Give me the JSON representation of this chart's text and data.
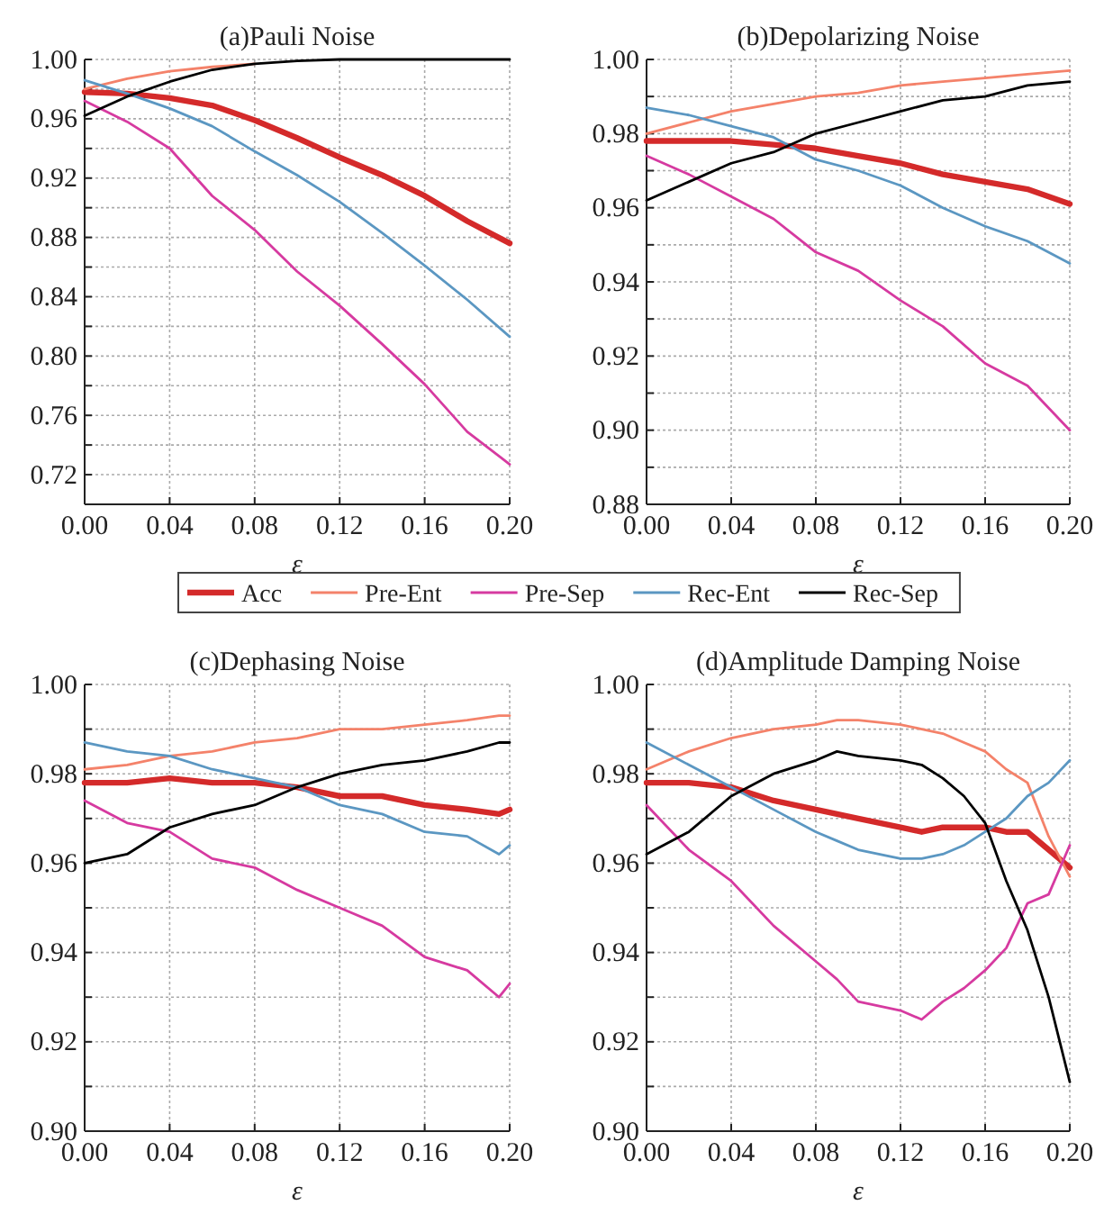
{
  "chart_data": [
    {
      "type": "line",
      "title": "(a)Pauli Noise",
      "xlabel": "ε",
      "xlim": [
        0,
        0.2
      ],
      "ylim": [
        0.7,
        1.0
      ],
      "grid": true,
      "legend": "bottom",
      "xticks": [
        {
          "value": 0,
          "label": "0.00"
        },
        {
          "value": 0.04,
          "label": "0.04"
        },
        {
          "value": 0.08,
          "label": "0.08"
        },
        {
          "value": 0.12,
          "label": "0.12"
        },
        {
          "value": 0.16,
          "label": "0.16"
        },
        {
          "value": 0.2,
          "label": "0.20"
        }
      ],
      "yticks": [
        {
          "value": 0.7,
          "label": null
        },
        {
          "value": 0.72,
          "label": "0.72"
        },
        {
          "value": 0.74,
          "label": null
        },
        {
          "value": 0.76,
          "label": "0.76"
        },
        {
          "value": 0.78,
          "label": null
        },
        {
          "value": 0.8,
          "label": "0.80"
        },
        {
          "value": 0.82,
          "label": null
        },
        {
          "value": 0.84,
          "label": "0.84"
        },
        {
          "value": 0.86,
          "label": null
        },
        {
          "value": 0.88,
          "label": "0.88"
        },
        {
          "value": 0.9,
          "label": null
        },
        {
          "value": 0.92,
          "label": "0.92"
        },
        {
          "value": 0.94,
          "label": null
        },
        {
          "value": 0.96,
          "label": "0.96"
        },
        {
          "value": 0.98,
          "label": null
        },
        {
          "value": 1.0,
          "label": "1.00"
        }
      ],
      "x": [
        0,
        0.02,
        0.04,
        0.06,
        0.08,
        0.1,
        0.12,
        0.14,
        0.16,
        0.18,
        0.2
      ],
      "series": [
        {
          "name": "Acc",
          "color": "#d42a2a",
          "values": [
            0.978,
            0.977,
            0.974,
            0.969,
            0.959,
            0.947,
            0.934,
            0.922,
            0.908,
            0.891,
            0.876
          ]
        },
        {
          "name": "Pre-Ent",
          "color": "#f4826a",
          "values": [
            0.98,
            0.987,
            0.992,
            0.995,
            0.997,
            null,
            null,
            null,
            null,
            null,
            null
          ]
        },
        {
          "name": "Pre-Sep",
          "color": "#d63aa0",
          "values": [
            0.972,
            0.958,
            0.94,
            0.908,
            0.885,
            0.857,
            0.834,
            0.808,
            0.781,
            0.749,
            0.727
          ]
        },
        {
          "name": "Rec-Ent",
          "color": "#5b97c2",
          "values": [
            0.986,
            0.977,
            0.967,
            0.955,
            0.938,
            0.922,
            0.904,
            0.883,
            0.861,
            0.838,
            0.813
          ]
        },
        {
          "name": "Rec-Sep",
          "color": "#000000",
          "values": [
            0.962,
            0.975,
            0.985,
            0.993,
            0.997,
            0.999,
            1.0,
            1.0,
            1.0,
            1.0,
            1.0
          ]
        }
      ]
    },
    {
      "type": "line",
      "title": "(b)Depolarizing Noise",
      "xlabel": "ε",
      "xlim": [
        0,
        0.2
      ],
      "ylim": [
        0.88,
        1.0
      ],
      "grid": true,
      "xticks": [
        {
          "value": 0,
          "label": "0.00"
        },
        {
          "value": 0.04,
          "label": "0.04"
        },
        {
          "value": 0.08,
          "label": "0.08"
        },
        {
          "value": 0.12,
          "label": "0.12"
        },
        {
          "value": 0.16,
          "label": "0.16"
        },
        {
          "value": 0.2,
          "label": "0.20"
        }
      ],
      "yticks": [
        {
          "value": 0.88,
          "label": "0.88"
        },
        {
          "value": 0.89,
          "label": null
        },
        {
          "value": 0.9,
          "label": "0.90"
        },
        {
          "value": 0.91,
          "label": null
        },
        {
          "value": 0.92,
          "label": "0.92"
        },
        {
          "value": 0.93,
          "label": null
        },
        {
          "value": 0.94,
          "label": "0.94"
        },
        {
          "value": 0.95,
          "label": null
        },
        {
          "value": 0.96,
          "label": "0.96"
        },
        {
          "value": 0.97,
          "label": null
        },
        {
          "value": 0.98,
          "label": "0.98"
        },
        {
          "value": 0.99,
          "label": null
        },
        {
          "value": 1.0,
          "label": "1.00"
        }
      ],
      "x": [
        0,
        0.02,
        0.04,
        0.06,
        0.08,
        0.1,
        0.12,
        0.14,
        0.16,
        0.18,
        0.2
      ],
      "series": [
        {
          "color": "#d42a2a",
          "values": [
            0.978,
            0.978,
            0.978,
            0.977,
            0.976,
            0.974,
            0.972,
            0.969,
            0.967,
            0.965,
            0.961
          ]
        },
        {
          "color": "#f4826a",
          "values": [
            0.98,
            0.983,
            0.986,
            0.988,
            0.99,
            0.991,
            0.993,
            0.994,
            0.995,
            0.996,
            0.997
          ]
        },
        {
          "color": "#d63aa0",
          "values": [
            0.974,
            0.969,
            0.963,
            0.957,
            0.948,
            0.943,
            0.935,
            0.928,
            0.918,
            0.912,
            0.9
          ]
        },
        {
          "color": "#5b97c2",
          "values": [
            0.987,
            0.985,
            0.982,
            0.979,
            0.973,
            0.97,
            0.966,
            0.96,
            0.955,
            0.951,
            0.945
          ]
        },
        {
          "color": "#000000",
          "values": [
            0.962,
            0.967,
            0.972,
            0.975,
            0.98,
            0.983,
            0.986,
            0.989,
            0.99,
            0.993,
            0.994
          ]
        }
      ]
    },
    {
      "type": "line",
      "title": "(c)Dephasing Noise",
      "xlabel": "ε",
      "xlim": [
        0,
        0.2
      ],
      "ylim": [
        0.9,
        1.0
      ],
      "grid": true,
      "xticks": [
        {
          "value": 0,
          "label": "0.00"
        },
        {
          "value": 0.04,
          "label": "0.04"
        },
        {
          "value": 0.08,
          "label": "0.08"
        },
        {
          "value": 0.12,
          "label": "0.12"
        },
        {
          "value": 0.16,
          "label": "0.16"
        },
        {
          "value": 0.2,
          "label": "0.20"
        }
      ],
      "yticks": [
        {
          "value": 0.9,
          "label": "0.90"
        },
        {
          "value": 0.91,
          "label": null
        },
        {
          "value": 0.92,
          "label": "0.92"
        },
        {
          "value": 0.93,
          "label": null
        },
        {
          "value": 0.94,
          "label": "0.94"
        },
        {
          "value": 0.95,
          "label": null
        },
        {
          "value": 0.96,
          "label": "0.96"
        },
        {
          "value": 0.97,
          "label": null
        },
        {
          "value": 0.98,
          "label": "0.98"
        },
        {
          "value": 0.99,
          "label": null
        },
        {
          "value": 1.0,
          "label": "1.00"
        }
      ],
      "x": [
        0,
        0.02,
        0.04,
        0.06,
        0.08,
        0.1,
        0.12,
        0.14,
        0.16,
        0.18,
        0.195,
        0.2
      ],
      "series": [
        {
          "color": "#d42a2a",
          "values": [
            0.978,
            0.978,
            0.979,
            0.978,
            0.978,
            0.977,
            0.975,
            0.975,
            0.973,
            0.972,
            0.971,
            0.972
          ]
        },
        {
          "color": "#f4826a",
          "values": [
            0.981,
            0.982,
            0.984,
            0.985,
            0.987,
            0.988,
            0.99,
            0.99,
            0.991,
            0.992,
            0.993,
            0.993
          ]
        },
        {
          "color": "#d63aa0",
          "values": [
            0.974,
            0.969,
            0.967,
            0.961,
            0.959,
            0.954,
            0.95,
            0.946,
            0.939,
            0.936,
            0.93,
            0.933
          ]
        },
        {
          "color": "#5b97c2",
          "values": [
            0.987,
            0.985,
            0.984,
            0.981,
            0.979,
            0.977,
            0.973,
            0.971,
            0.967,
            0.966,
            0.962,
            0.964
          ]
        },
        {
          "color": "#000000",
          "values": [
            0.96,
            0.962,
            0.968,
            0.971,
            0.973,
            0.977,
            0.98,
            0.982,
            0.983,
            0.985,
            0.987,
            0.987
          ]
        }
      ]
    },
    {
      "type": "line",
      "title": "(d)Amplitude Damping Noise",
      "xlabel": "ε",
      "xlim": [
        0,
        0.2
      ],
      "ylim": [
        0.9,
        1.0
      ],
      "grid": true,
      "xticks": [
        {
          "value": 0,
          "label": "0.00"
        },
        {
          "value": 0.04,
          "label": "0.04"
        },
        {
          "value": 0.08,
          "label": "0.08"
        },
        {
          "value": 0.12,
          "label": "0.12"
        },
        {
          "value": 0.16,
          "label": "0.16"
        },
        {
          "value": 0.2,
          "label": "0.20"
        }
      ],
      "yticks": [
        {
          "value": 0.9,
          "label": "0.90"
        },
        {
          "value": 0.91,
          "label": null
        },
        {
          "value": 0.92,
          "label": "0.92"
        },
        {
          "value": 0.93,
          "label": null
        },
        {
          "value": 0.94,
          "label": "0.94"
        },
        {
          "value": 0.95,
          "label": null
        },
        {
          "value": 0.96,
          "label": "0.96"
        },
        {
          "value": 0.97,
          "label": null
        },
        {
          "value": 0.98,
          "label": "0.98"
        },
        {
          "value": 0.99,
          "label": null
        },
        {
          "value": 1.0,
          "label": "1.00"
        }
      ],
      "x": [
        0,
        0.02,
        0.04,
        0.06,
        0.08,
        0.09,
        0.1,
        0.12,
        0.13,
        0.14,
        0.15,
        0.16,
        0.17,
        0.18,
        0.19,
        0.2
      ],
      "series": [
        {
          "color": "#d42a2a",
          "values": [
            0.978,
            0.978,
            0.977,
            0.974,
            0.972,
            0.971,
            0.97,
            0.968,
            0.967,
            0.968,
            0.968,
            0.968,
            0.967,
            0.967,
            0.963,
            0.959
          ]
        },
        {
          "color": "#f4826a",
          "values": [
            0.981,
            0.985,
            0.988,
            0.99,
            0.991,
            0.992,
            0.992,
            0.991,
            0.99,
            0.989,
            0.987,
            0.985,
            0.981,
            0.978,
            0.966,
            0.957
          ]
        },
        {
          "color": "#d63aa0",
          "values": [
            0.973,
            0.963,
            0.956,
            0.946,
            0.938,
            0.934,
            0.929,
            0.927,
            0.925,
            0.929,
            0.932,
            0.936,
            0.941,
            0.951,
            0.953,
            0.964
          ]
        },
        {
          "color": "#5b97c2",
          "values": [
            0.987,
            0.982,
            0.977,
            0.972,
            0.967,
            0.965,
            0.963,
            0.961,
            0.961,
            0.962,
            0.964,
            0.967,
            0.97,
            0.975,
            0.978,
            0.983
          ]
        },
        {
          "color": "#000000",
          "values": [
            0.962,
            0.967,
            0.975,
            0.98,
            0.983,
            0.985,
            0.984,
            0.983,
            0.982,
            0.979,
            0.975,
            0.969,
            0.956,
            0.945,
            0.93,
            0.911
          ]
        }
      ]
    }
  ]
}
